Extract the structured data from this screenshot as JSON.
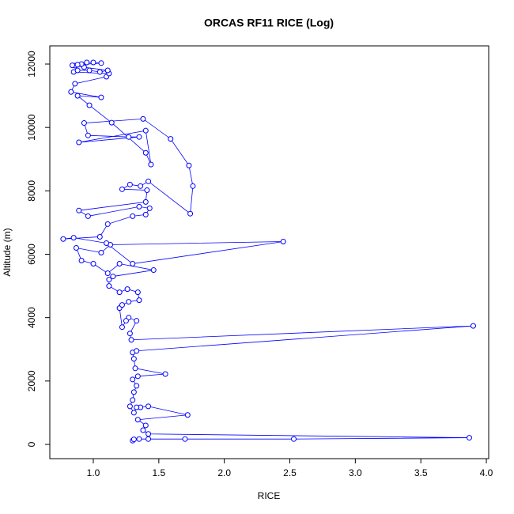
{
  "chart_data": {
    "type": "line",
    "title": "ORCAS RF11 RICE (Log)",
    "xlabel": "RICE",
    "ylabel": "Altitude (m)",
    "color": "#0000ff",
    "markers": true,
    "x": [
      1.3,
      1.31,
      1.35,
      1.42,
      1.7,
      2.53,
      3.87,
      1.42,
      1.38,
      1.4,
      1.34,
      1.72,
      1.42,
      1.36,
      1.33,
      1.31,
      1.28,
      1.3,
      1.31,
      1.33,
      1.3,
      1.34,
      1.55,
      1.32,
      1.31,
      1.3,
      1.33,
      3.9,
      1.29,
      1.28,
      1.33,
      1.27,
      1.25,
      1.22,
      1.2,
      1.22,
      1.27,
      1.35,
      1.34,
      1.26,
      1.2,
      1.12,
      1.12,
      1.15,
      1.46,
      1.2,
      1.11,
      1.0,
      0.91,
      0.87,
      1.06,
      1.13,
      2.45,
      1.3,
      1.1,
      0.85,
      0.77,
      1.05,
      1.11,
      1.3,
      1.4,
      1.43,
      1.35,
      0.96,
      0.89,
      1.4,
      1.41,
      1.22,
      1.28,
      1.36,
      1.42,
      1.74,
      1.76,
      1.73,
      1.59,
      1.38,
      0.93,
      0.96,
      1.27,
      1.35,
      0.89,
      1.4,
      1.44,
      1.4,
      1.14,
      0.97,
      0.88,
      1.06,
      0.83,
      0.86,
      1.1,
      1.12,
      0.85,
      0.88,
      0.97,
      1.05,
      1.11,
      0.93,
      0.86,
      0.91,
      0.95,
      1.0,
      1.06,
      0.88,
      0.84
    ],
    "values": [
      120,
      160,
      170,
      170,
      170,
      170,
      210,
      330,
      450,
      600,
      780,
      930,
      1200,
      1170,
      1170,
      1000,
      1200,
      1400,
      1650,
      1850,
      2050,
      2150,
      2220,
      2400,
      2700,
      2900,
      2950,
      3740,
      3300,
      3500,
      3900,
      4000,
      3900,
      3700,
      4300,
      4400,
      4500,
      4550,
      4800,
      4900,
      4800,
      5000,
      5200,
      5300,
      5500,
      5700,
      5400,
      5700,
      5800,
      6200,
      6050,
      6300,
      6400,
      5700,
      6350,
      6520,
      6480,
      6550,
      6950,
      7200,
      7250,
      7450,
      7500,
      7200,
      7380,
      7650,
      8020,
      8050,
      8200,
      8150,
      8300,
      7280,
      8150,
      8800,
      9640,
      10270,
      10140,
      9750,
      9700,
      9700,
      9530,
      9900,
      8830,
      9200,
      10150,
      10700,
      11000,
      10950,
      11120,
      11380,
      11600,
      11700,
      11750,
      11800,
      11800,
      11750,
      11800,
      11900,
      11950,
      12000,
      12050,
      12050,
      12030,
      11980,
      11960
    ],
    "xlim": [
      0.668,
      4.018
    ],
    "ylim": [
      -449,
      12574
    ],
    "xticks": [
      {
        "value": 1,
        "label": "1.0"
      },
      {
        "value": 1.5,
        "label": "1.5"
      },
      {
        "value": 2,
        "label": "2.0"
      },
      {
        "value": 2.5,
        "label": "2.5"
      },
      {
        "value": 3,
        "label": "3.0"
      },
      {
        "value": 3.5,
        "label": "3.5"
      },
      {
        "value": 4,
        "label": "4.0"
      }
    ],
    "yticks": [
      0,
      2000,
      4000,
      6000,
      8000,
      10000,
      12000
    ]
  }
}
